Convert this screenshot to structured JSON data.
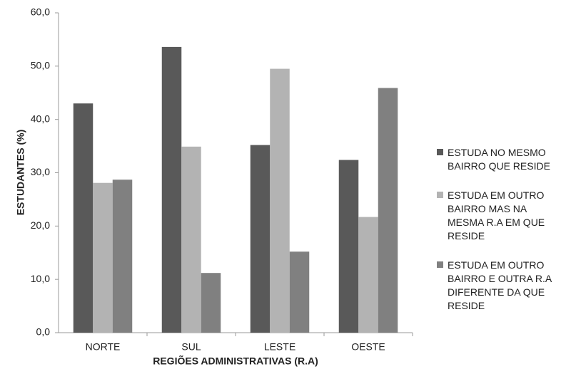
{
  "chart_data": {
    "type": "bar",
    "categories": [
      "NORTE",
      "SUL",
      "LESTE",
      "OESTE"
    ],
    "series": [
      {
        "name": "ESTUDA NO MESMO BAIRRO QUE RESIDE",
        "color": "#595959",
        "values": [
          43.0,
          53.6,
          35.2,
          32.4
        ]
      },
      {
        "name": "ESTUDA EM OUTRO BAIRRO MAS NA MESMA R.A EM QUE RESIDE",
        "color": "#b3b3b3",
        "values": [
          28.1,
          34.9,
          49.5,
          21.7
        ]
      },
      {
        "name": "ESTUDA EM OUTRO BAIRRO E OUTRA R.A DIFERENTE DA QUE RESIDE",
        "color": "#808080",
        "values": [
          28.7,
          11.2,
          15.2,
          45.9
        ]
      }
    ],
    "x_label": "REGIÕES ADMINISTRATIVAS (R.A)",
    "y_label": "ESTUDANTES (%)",
    "ylim": [
      0,
      60
    ],
    "yticks": [
      {
        "value": 0,
        "label": "0,0"
      },
      {
        "value": 10,
        "label": "10,0"
      },
      {
        "value": 20,
        "label": "20,0"
      },
      {
        "value": 30,
        "label": "30,0"
      },
      {
        "value": 40,
        "label": "40,0"
      },
      {
        "value": 50,
        "label": "50,0"
      },
      {
        "value": 60,
        "label": "60,0"
      }
    ],
    "grid": false,
    "legend": "right"
  }
}
